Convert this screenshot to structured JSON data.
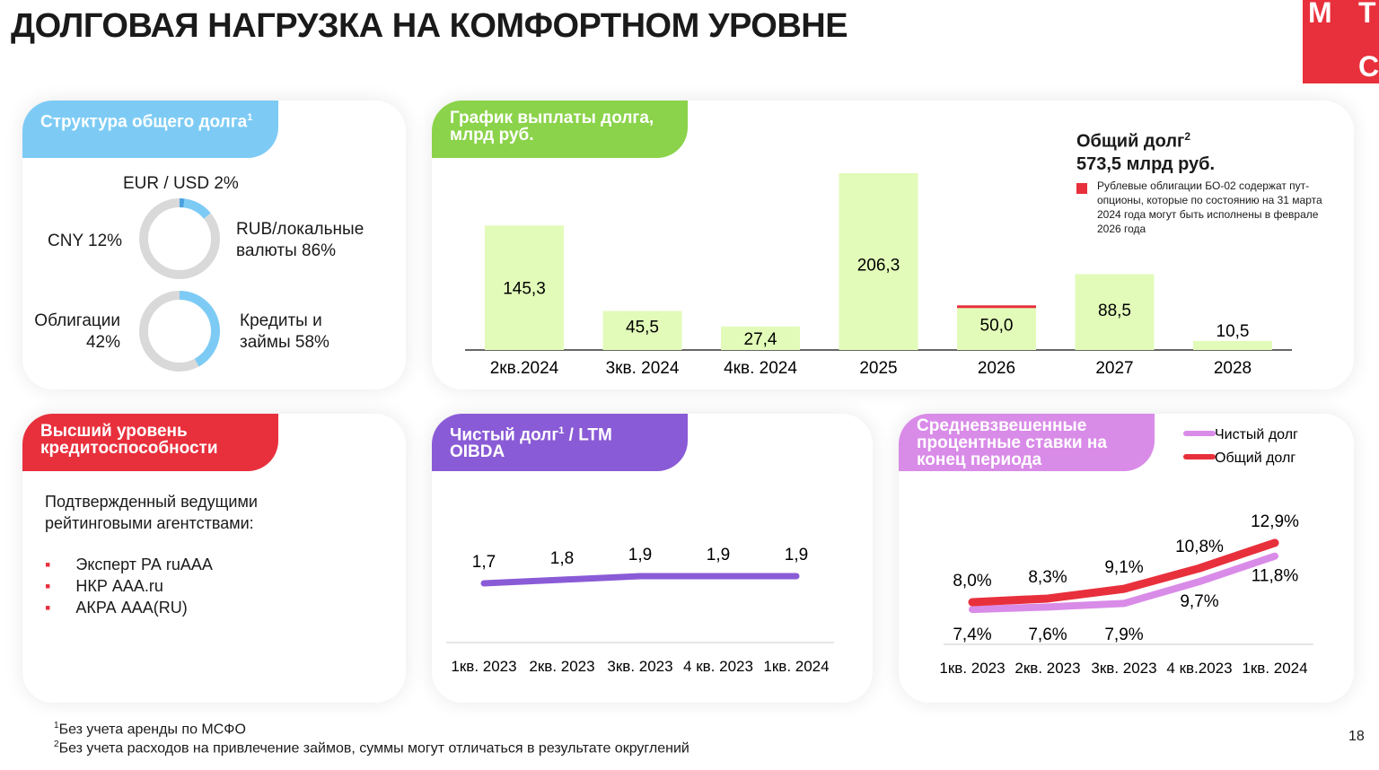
{
  "title": "ДОЛГОВАЯ НАГРУЗКА НА КОМФОРТНОМ УРОВНЕ",
  "logo": "МТС",
  "colors": {
    "red": "#e8303c",
    "green_bar": "#e2fbb9",
    "blue": "#7dcbf5",
    "gray": "#d9d9d9",
    "purple": "#8a5bd6",
    "pink": "#d98be8"
  },
  "structure": {
    "tag": "Структура общего долга",
    "tag_sup": "1",
    "currency": [
      {
        "label": "EUR / USD 2%",
        "value": 2
      },
      {
        "label": "CNY 12%",
        "value": 12
      },
      {
        "label": "RUB/локальные валюты 86%",
        "value": 86
      }
    ],
    "instrument": [
      {
        "label": "Облигации 42%",
        "value": 42
      },
      {
        "label": "Кредиты и займы 58%",
        "value": 58
      }
    ]
  },
  "rating": {
    "tag": "Высший уровень кредитоспособности",
    "intro": "Подтвержденный ведущими рейтинговыми агентствами:",
    "items": [
      "Эксперт РА ruAAA",
      "НКР AAA.ru",
      "АКРА AAA(RU)"
    ]
  },
  "chart_data": [
    {
      "type": "bar",
      "title": "График выплаты долга, млрд руб.",
      "categories": [
        "2кв.2024",
        "3кв. 2024",
        "4кв. 2024",
        "2025",
        "2026",
        "2027",
        "2028"
      ],
      "values": [
        145.3,
        45.5,
        27.4,
        206.3,
        50.0,
        88.5,
        10.5
      ],
      "labels": [
        "145,3",
        "45,5",
        "27,4",
        "206,3",
        "50,0",
        "88,5",
        "10,5"
      ],
      "ylim": [
        0,
        210
      ],
      "total_title": "Общий долг",
      "total_sup": "2",
      "total_value": "573,5 млрд руб.",
      "note": "Рублевые облигации БО-02 содержат пут-опционы, которые по состоянию на 31 марта 2024 года могут быть исполнены в феврале 2026 года"
    },
    {
      "type": "line",
      "title": "Чистый долг",
      "title_sup": "1",
      "title_rest": " / LTM OIBDA",
      "categories": [
        "1кв. 2023",
        "2кв. 2023",
        "3кв. 2023",
        "4 кв. 2023",
        "1кв. 2024"
      ],
      "values": [
        1.7,
        1.8,
        1.9,
        1.9,
        1.9
      ],
      "labels": [
        "1,7",
        "1,8",
        "1,9",
        "1,9",
        "1,9"
      ]
    },
    {
      "type": "line",
      "title": "Средневзвешенные процентные ставки на конец периода",
      "categories": [
        "1кв. 2023",
        "2кв. 2023",
        "3кв. 2023",
        "4 кв.2023",
        "1кв. 2024"
      ],
      "series": [
        {
          "name": "Чистый долг",
          "values": [
            7.4,
            7.6,
            7.9,
            9.7,
            11.8
          ],
          "labels": [
            "7,4%",
            "7,6%",
            "7,9%",
            "9,7%",
            "11,8%"
          ]
        },
        {
          "name": "Общий долг",
          "values": [
            8.0,
            8.3,
            9.1,
            10.8,
            12.9
          ],
          "labels": [
            "8,0%",
            "8,3%",
            "9,1%",
            "10,8%",
            "12,9%"
          ]
        }
      ]
    }
  ],
  "footnotes": [
    "Без учета аренды по МСФО",
    "Без учета расходов на привлечение займов, суммы могут отличаться в результате округлений"
  ],
  "page": "18"
}
